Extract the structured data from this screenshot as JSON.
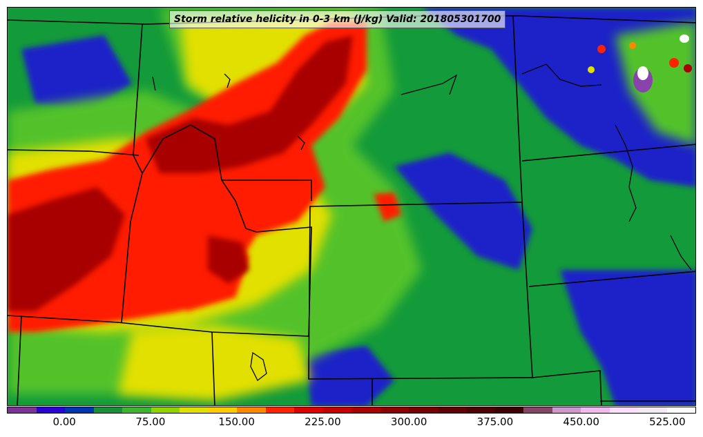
{
  "map": {
    "title": "Storm relative helicity in 0-3 km (J/kg) Valid: 201805301700"
  },
  "colorbar": {
    "colors": [
      "#7b3294",
      "#2a00d4",
      "#0033b0",
      "#1a8f3a",
      "#3cb42d",
      "#8fd400",
      "#e0e000",
      "#ffcc00",
      "#ff8800",
      "#ff2200",
      "#dd0000",
      "#c40000",
      "#aa0000",
      "#8c0000",
      "#760000",
      "#600000",
      "#4d0000",
      "#3a0000",
      "#884466",
      "#cc99cc",
      "#eebbee",
      "#ffddff",
      "#f4eaf4",
      "#ffffff"
    ],
    "ticks": [
      {
        "label": "0.00",
        "value": 0
      },
      {
        "label": "75.00",
        "value": 75
      },
      {
        "label": "150.00",
        "value": 150
      },
      {
        "label": "225.00",
        "value": 225
      },
      {
        "label": "300.00",
        "value": 300
      },
      {
        "label": "375.00",
        "value": 375
      },
      {
        "label": "450.00",
        "value": 450
      },
      {
        "label": "525.00",
        "value": 525
      }
    ],
    "min": -50,
    "max": 550
  }
}
